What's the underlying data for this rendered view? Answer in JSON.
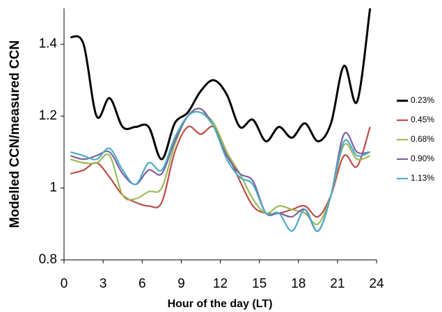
{
  "chart_data": {
    "type": "line",
    "x_label": "Hour of the day (LT)",
    "y_label": "Modelled CCN/measured CCN",
    "x": [
      0.5,
      1.5,
      2.5,
      3.5,
      4.5,
      5.5,
      6.5,
      7.5,
      8.5,
      9.5,
      10.5,
      11.5,
      12.5,
      13.5,
      14.5,
      15.5,
      16.5,
      17.5,
      18.5,
      19.5,
      20.5,
      21.5,
      22.5,
      23.5
    ],
    "xlim": [
      0,
      24
    ],
    "xticks": [
      0,
      3,
      6,
      9,
      12,
      15,
      18,
      21,
      24
    ],
    "ylim": [
      0.8,
      1.5
    ],
    "yticks": [
      0.8,
      1,
      1.2,
      1.4
    ],
    "legend": "right",
    "series": [
      {
        "name": "0.23%",
        "color": "#000000",
        "values": [
          1.42,
          1.4,
          1.2,
          1.25,
          1.17,
          1.17,
          1.17,
          1.08,
          1.18,
          1.21,
          1.27,
          1.3,
          1.26,
          1.17,
          1.19,
          1.13,
          1.17,
          1.14,
          1.18,
          1.13,
          1.18,
          1.34,
          1.24,
          1.5
        ]
      },
      {
        "name": "0.45%",
        "color": "#be4b48",
        "values": [
          1.04,
          1.05,
          1.07,
          1.03,
          0.98,
          0.96,
          0.95,
          0.96,
          1.1,
          1.17,
          1.15,
          1.17,
          1.1,
          1.02,
          0.95,
          0.93,
          0.93,
          0.94,
          0.95,
          0.92,
          0.98,
          1.09,
          1.06,
          1.17
        ]
      },
      {
        "name": "0.68%",
        "color": "#9bbb59",
        "values": [
          1.08,
          1.07,
          1.07,
          1.09,
          0.98,
          0.97,
          0.99,
          1.0,
          1.12,
          1.2,
          1.21,
          1.18,
          1.1,
          1.04,
          0.97,
          0.93,
          0.95,
          0.94,
          0.93,
          0.9,
          0.98,
          1.12,
          1.08,
          1.09
        ]
      },
      {
        "name": "0.90%",
        "color": "#7d5fa0",
        "values": [
          1.09,
          1.08,
          1.09,
          1.1,
          1.04,
          1.01,
          1.05,
          1.04,
          1.13,
          1.2,
          1.22,
          1.17,
          1.09,
          1.04,
          1.02,
          0.93,
          0.93,
          0.92,
          0.94,
          0.88,
          0.98,
          1.15,
          1.1,
          1.1
        ]
      },
      {
        "name": "1.13%",
        "color": "#4bacc6",
        "values": [
          1.1,
          1.09,
          1.08,
          1.11,
          1.05,
          1.01,
          1.07,
          1.05,
          1.14,
          1.2,
          1.21,
          1.17,
          1.08,
          1.03,
          1.01,
          0.93,
          0.93,
          0.88,
          0.94,
          0.88,
          0.98,
          1.13,
          1.09,
          1.1
        ]
      }
    ]
  }
}
